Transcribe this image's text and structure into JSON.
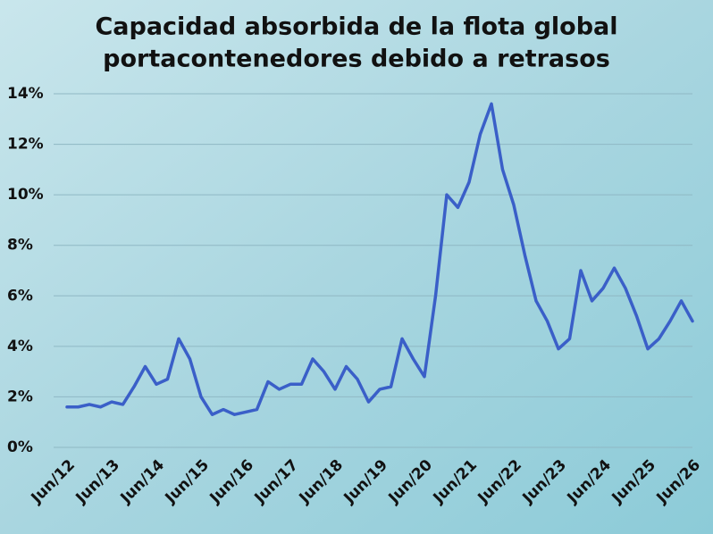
{
  "chart_data": {
    "type": "line",
    "title": [
      "Capacidad absorbida de la flota global",
      "portacontenedores debido a retrasos"
    ],
    "categories": [
      "Jun/12",
      null,
      null,
      null,
      "Jun/13",
      null,
      null,
      null,
      "Jun/14",
      null,
      null,
      null,
      "Jun/15",
      null,
      null,
      null,
      "Jun/16",
      null,
      null,
      null,
      "Jun/17",
      null,
      null,
      null,
      "Jun/18",
      null,
      null,
      null,
      "Jun/19",
      null,
      null,
      null,
      "Jun/20",
      null,
      null,
      null,
      "Jun/21",
      null,
      null,
      null,
      "Jun/22",
      null,
      null,
      null,
      "Jun/23",
      null,
      null,
      null,
      "Jun/24",
      null,
      null,
      null,
      "Jun/25",
      null,
      null,
      null,
      "Jun/26"
    ],
    "series": [
      {
        "name": "Capacidad absorbida",
        "color": "#3a5fc8",
        "values": [
          1.6,
          1.6,
          1.7,
          1.6,
          1.8,
          1.7,
          2.4,
          3.2,
          2.5,
          2.7,
          4.3,
          3.5,
          2.0,
          1.3,
          1.5,
          1.3,
          1.4,
          1.5,
          2.6,
          2.3,
          2.5,
          2.5,
          3.5,
          3.0,
          2.3,
          3.2,
          2.7,
          1.8,
          2.3,
          2.4,
          4.3,
          3.5,
          2.8,
          6.0,
          10.0,
          9.5,
          10.5,
          12.4,
          13.6,
          11.0,
          9.6,
          7.6,
          5.8,
          5.0,
          3.9,
          4.3,
          7.0,
          5.8,
          6.3,
          7.1,
          6.3,
          5.2,
          3.9,
          4.3,
          5.0,
          5.8,
          5.0
        ]
      }
    ],
    "ylim": [
      0,
      14
    ],
    "yticks": [
      {
        "value": 0,
        "label": "0%"
      },
      {
        "value": 2,
        "label": "2%"
      },
      {
        "value": 4,
        "label": "4%"
      },
      {
        "value": 6,
        "label": "6%"
      },
      {
        "value": 8,
        "label": "8%"
      },
      {
        "value": 10,
        "label": "10%"
      },
      {
        "value": 12,
        "label": "12%"
      },
      {
        "value": 14,
        "label": "14%"
      }
    ],
    "grid": true
  }
}
